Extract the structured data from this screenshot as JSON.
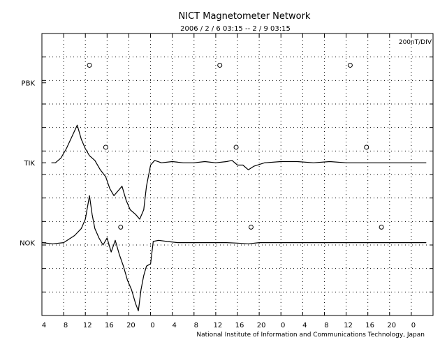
{
  "chart_data": {
    "type": "line",
    "title": "NICT Magnetometer Network",
    "subtitle": "2006 / 2 / 6   03:15 --  2 / 9   03:15",
    "scale_label": "200nT/DIV",
    "credit": "National Institute of Information and Communications Technology, Japan",
    "grid": true,
    "x_range_hours": [
      0,
      72
    ],
    "x_tick_labels": [
      "4",
      "8",
      "12",
      "16",
      "20",
      "0",
      "4",
      "8",
      "12",
      "16",
      "20",
      "0",
      "4",
      "8",
      "12",
      "16",
      "20",
      "0"
    ],
    "y_range_div": [
      0,
      12
    ],
    "stations": [
      {
        "name": "PBK",
        "baseline_div": 9.9,
        "marker_hours": [
          8.75,
          32.75,
          56.75
        ],
        "marker_div_above": 0.75,
        "trace": []
      },
      {
        "name": "TIK",
        "baseline_div": 6.5,
        "marker_hours": [
          11.75,
          35.75,
          59.75
        ],
        "marker_div_above": 0.66,
        "trace": [
          [
            1.75,
            0
          ],
          [
            2.5,
            0
          ],
          [
            3.5,
            0.2
          ],
          [
            4.5,
            0.6
          ],
          [
            5.5,
            1.1
          ],
          [
            6.5,
            1.6
          ],
          [
            7.25,
            1.0
          ],
          [
            8.0,
            0.6
          ],
          [
            8.75,
            0.3
          ],
          [
            9.75,
            0.1
          ],
          [
            10.75,
            -0.3
          ],
          [
            11.75,
            -0.6
          ],
          [
            12.5,
            -1.1
          ],
          [
            13.25,
            -1.4
          ],
          [
            14.0,
            -1.2
          ],
          [
            14.75,
            -1.0
          ],
          [
            15.5,
            -1.6
          ],
          [
            16.25,
            -2.0
          ],
          [
            17.25,
            -2.2
          ],
          [
            18.0,
            -2.4
          ],
          [
            18.75,
            -2.0
          ],
          [
            19.25,
            -1.0
          ],
          [
            20.0,
            -0.1
          ],
          [
            20.75,
            0.1
          ],
          [
            22.0,
            0.0
          ],
          [
            24.0,
            0.05
          ],
          [
            26.0,
            0.0
          ],
          [
            28.0,
            0.0
          ],
          [
            30.0,
            0.05
          ],
          [
            32.0,
            0.0
          ],
          [
            34.0,
            0.05
          ],
          [
            35.0,
            0.1
          ],
          [
            36.0,
            -0.1
          ],
          [
            37.0,
            -0.1
          ],
          [
            38.0,
            -0.3
          ],
          [
            39.0,
            -0.15
          ],
          [
            41.0,
            0.0
          ],
          [
            44.0,
            0.05
          ],
          [
            47.0,
            0.05
          ],
          [
            50.0,
            0.0
          ],
          [
            53.0,
            0.05
          ],
          [
            56.0,
            0.0
          ],
          [
            59.0,
            0.0
          ],
          [
            62.0,
            0.0
          ],
          [
            65.0,
            0.0
          ],
          [
            70.75,
            0.0
          ]
        ]
      },
      {
        "name": "NOK",
        "baseline_div": 3.1,
        "marker_hours": [
          14.5,
          38.5,
          62.5
        ],
        "marker_div_above": 0.66,
        "trace": [
          [
            0.0,
            0
          ],
          [
            2.0,
            -0.05
          ],
          [
            4.0,
            0
          ],
          [
            6.0,
            0.3
          ],
          [
            7.25,
            0.6
          ],
          [
            8.0,
            1.0
          ],
          [
            8.75,
            2.0
          ],
          [
            9.25,
            1.2
          ],
          [
            9.75,
            0.6
          ],
          [
            10.5,
            0.2
          ],
          [
            11.25,
            -0.1
          ],
          [
            12.0,
            0.2
          ],
          [
            12.75,
            -0.4
          ],
          [
            13.5,
            0.1
          ],
          [
            14.25,
            -0.5
          ],
          [
            15.0,
            -1.0
          ],
          [
            15.75,
            -1.6
          ],
          [
            16.5,
            -2.0
          ],
          [
            17.25,
            -2.6
          ],
          [
            17.75,
            -2.9
          ],
          [
            18.25,
            -2.0
          ],
          [
            18.75,
            -1.4
          ],
          [
            19.25,
            -1.0
          ],
          [
            20.0,
            -0.9
          ],
          [
            20.5,
            0.05
          ],
          [
            21.5,
            0.1
          ],
          [
            23.0,
            0.05
          ],
          [
            25.0,
            0.0
          ],
          [
            28.0,
            0.0
          ],
          [
            31.0,
            0.0
          ],
          [
            34.0,
            0.0
          ],
          [
            36.0,
            -0.02
          ],
          [
            38.0,
            -0.05
          ],
          [
            40.0,
            0.0
          ],
          [
            43.0,
            0.0
          ],
          [
            46.0,
            0.0
          ],
          [
            49.0,
            0.0
          ],
          [
            52.0,
            0.0
          ],
          [
            55.0,
            0.0
          ],
          [
            58.0,
            0.0
          ],
          [
            61.0,
            0.0
          ],
          [
            64.0,
            0.0
          ],
          [
            70.75,
            0.0
          ]
        ]
      }
    ]
  }
}
